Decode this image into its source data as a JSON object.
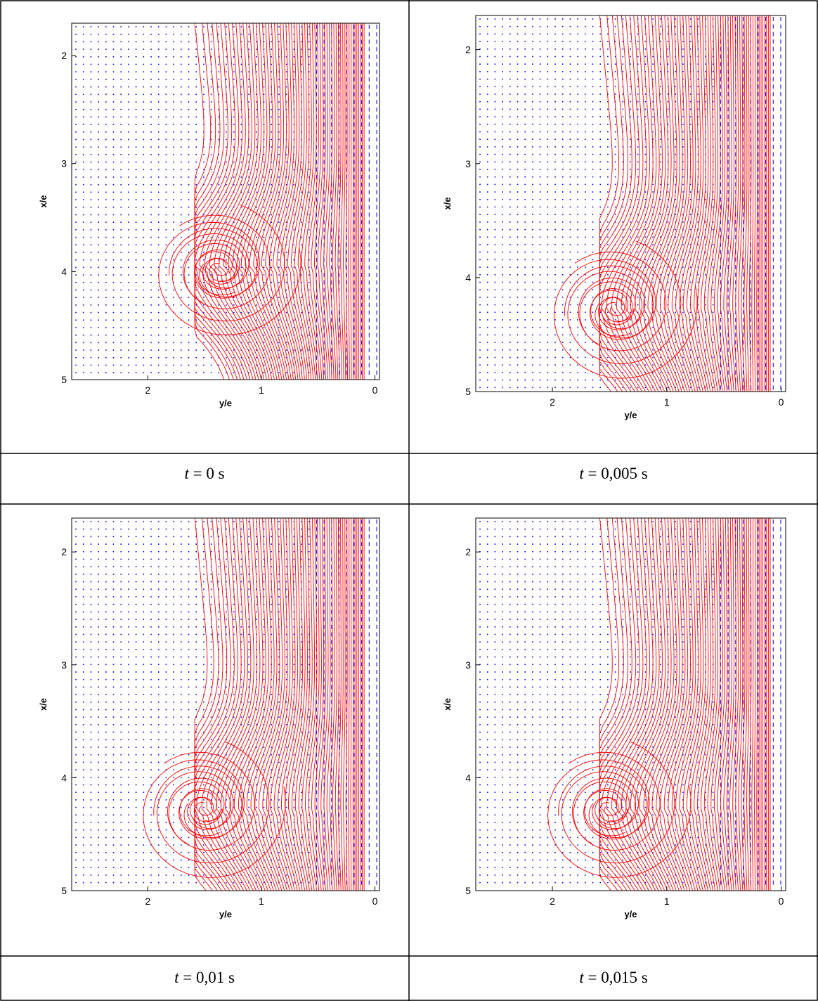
{
  "chart_data": [
    {
      "type": "streamline",
      "xlabel": "y/e",
      "ylabel": "x/e",
      "xlim": [
        2.67,
        -0.04
      ],
      "ylim": [
        1.7,
        5.0
      ],
      "xticks": [
        2,
        1,
        0
      ],
      "yticks": [
        2,
        3,
        4,
        5
      ],
      "line_color": "#ff0000",
      "quiver_color": "#0000ff"
    },
    {
      "type": "streamline",
      "xlabel": "y/e",
      "ylabel": "x/e",
      "xlim": [
        2.67,
        -0.04
      ],
      "ylim": [
        1.7,
        5.0
      ],
      "xticks": [
        2,
        1,
        0
      ],
      "yticks": [
        2,
        3,
        4,
        5
      ],
      "line_color": "#ff0000",
      "quiver_color": "#0000ff"
    },
    {
      "type": "streamline",
      "xlabel": "y/e",
      "ylabel": "x/e",
      "xlim": [
        2.67,
        -0.04
      ],
      "ylim": [
        1.7,
        5.0
      ],
      "xticks": [
        2,
        1,
        0
      ],
      "yticks": [
        2,
        3,
        4,
        5
      ],
      "line_color": "#ff0000",
      "quiver_color": "#0000ff"
    },
    {
      "type": "streamline",
      "xlabel": "y/e",
      "ylabel": "x/e",
      "xlim": [
        2.67,
        -0.04
      ],
      "ylim": [
        1.7,
        5.0
      ],
      "xticks": [
        2,
        1,
        0
      ],
      "yticks": [
        2,
        3,
        4,
        5
      ],
      "line_color": "#ff0000",
      "quiver_color": "#0000ff"
    }
  ],
  "captions": [
    {
      "symbol": "t",
      "text": "= 0 s"
    },
    {
      "symbol": "t",
      "text": "= 0,005 s"
    },
    {
      "symbol": "t",
      "text": "= 0,01 s"
    },
    {
      "symbol": "t",
      "text": "= 0,015 s"
    }
  ]
}
